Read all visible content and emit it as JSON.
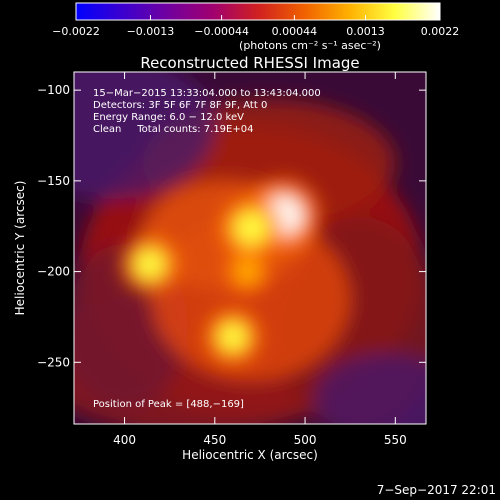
{
  "chart_data": {
    "type": "heatmap",
    "title": "Reconstructed RHESSI Image",
    "xlabel": "Heliocentric X (arcsec)",
    "ylabel": "Heliocentric Y (arcsec)",
    "xlim": [
      372,
      567
    ],
    "ylim": [
      -284,
      -90
    ],
    "xticks": [
      400,
      450,
      500,
      550
    ],
    "yticks": [
      -100,
      -150,
      -200,
      -250
    ],
    "colorbar": {
      "min": -0.0022,
      "max": 0.0022,
      "tick_values": [
        -0.0022,
        -0.0013,
        -0.00044,
        0.00044,
        0.0013,
        0.0022
      ],
      "tick_labels": [
        "−0.0022",
        "−0.0013",
        "−0.00044",
        "0.00044",
        "0.0013",
        "0.0022"
      ],
      "unit_label": "(photons cm⁻² s⁻¹ asec⁻²)",
      "colors": [
        "#0000ff",
        "#3a00d0",
        "#7000a0",
        "#a00070",
        "#d02020",
        "#f06000",
        "#ffb000",
        "#ffff40",
        "#ffffff"
      ]
    },
    "annotations": [
      "15−Mar−2015 13:33:04.000 to 13:43:04.000",
      "Detectors: 3F 5F 6F 7F 8F 9F, Att 0",
      "Energy Range: 6.0 − 12.0 keV",
      "Clean     Total counts: 7.19E+04",
      "Position of Peak = [488,−169]"
    ],
    "sources": [
      {
        "x": 488,
        "y": -169,
        "value": 0.0022
      },
      {
        "x": 470,
        "y": -176,
        "value": 0.0018
      },
      {
        "x": 414,
        "y": -196,
        "value": 0.0016
      },
      {
        "x": 460,
        "y": -236,
        "value": 0.0015
      },
      {
        "x": 468,
        "y": -200,
        "value": 0.001
      }
    ]
  },
  "footer_date": "7−Sep−2017 22:01"
}
